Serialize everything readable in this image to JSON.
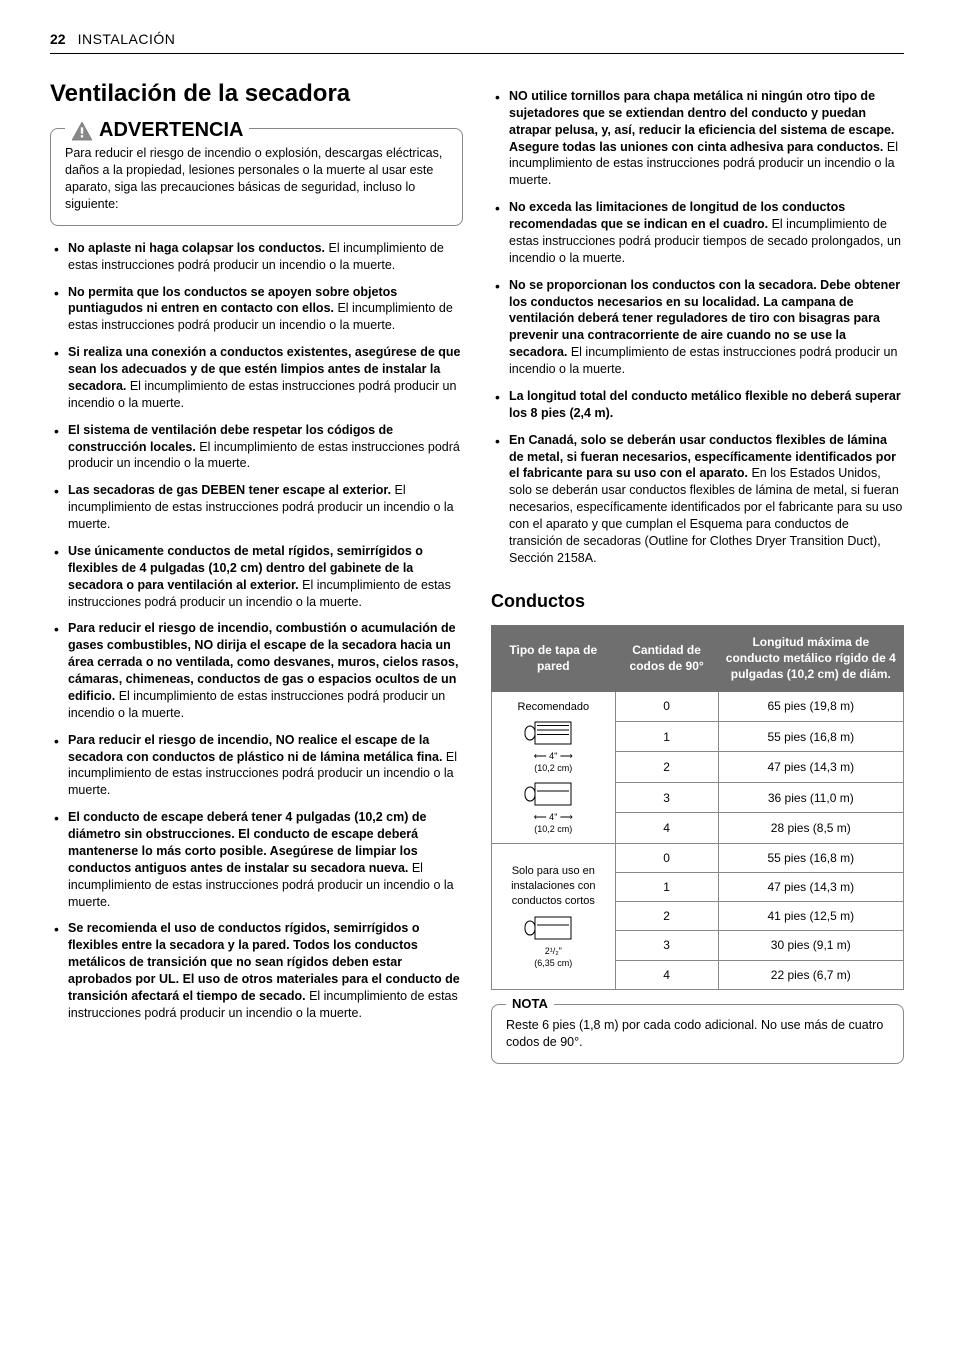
{
  "header": {
    "page_number": "22",
    "section": "INSTALACIÓN"
  },
  "title": "Ventilación de la secadora",
  "warning": {
    "label": "ADVERTENCIA",
    "text": "Para reducir el riesgo de incendio o explosión, descargas eléctricas, daños a la propiedad, lesiones personales o la muerte al usar este aparato, siga las precauciones básicas de seguridad, incluso lo siguiente:"
  },
  "left_bullets": [
    {
      "bold": "No aplaste ni haga colapsar los conductos.",
      "rest": " El incumplimiento de estas instrucciones podrá producir un incendio o la muerte."
    },
    {
      "bold": "No permita que los conductos se apoyen sobre objetos puntiagudos ni entren en contacto con ellos.",
      "rest": " El incumplimiento de estas instrucciones podrá producir un incendio o la muerte."
    },
    {
      "bold": "Si realiza una conexión a conductos existentes, asegúrese de que sean los adecuados y de que estén limpios antes de instalar la secadora.",
      "rest": " El incumplimiento de estas instrucciones podrá producir un incendio o la muerte."
    },
    {
      "bold": "El sistema de ventilación debe respetar los códigos de construcción locales.",
      "rest": " El incumplimiento de estas instrucciones podrá producir un incendio o la muerte."
    },
    {
      "bold": "Las secadoras de gas DEBEN tener escape al exterior.",
      "rest": " El incumplimiento de estas instrucciones podrá producir un incendio o la muerte."
    },
    {
      "bold": "Use únicamente conductos de metal rígidos, semirrígidos o flexibles de 4 pulgadas (10,2 cm) dentro del gabinete de la secadora o para ventilación al exterior.",
      "rest": " El incumplimiento de estas instrucciones podrá producir un incendio o la muerte."
    },
    {
      "bold": "Para reducir el riesgo de incendio, combustión o acumulación de gases combustibles, NO dirija el escape de la secadora hacia un área cerrada o no ventilada, como desvanes, muros, cielos rasos, cámaras, chimeneas, conductos de gas o espacios ocultos de un edificio.",
      "rest": " El incumplimiento de estas instrucciones podrá producir un incendio o la muerte."
    },
    {
      "bold": "Para reducir el riesgo de incendio, NO realice el escape de la secadora con conductos de plástico ni de lámina metálica fina.",
      "rest": " El incumplimiento de estas instrucciones podrá producir un incendio o la muerte."
    },
    {
      "bold": "El conducto de escape deberá tener 4 pulgadas (10,2 cm) de diámetro sin obstrucciones. El conducto de escape deberá mantenerse lo más corto posible. Asegúrese de limpiar los conductos antiguos antes de instalar su secadora nueva.",
      "rest": " El incumplimiento de estas instrucciones podrá producir un incendio o la muerte."
    },
    {
      "bold": "Se recomienda el uso de conductos rígidos, semirrígidos o flexibles entre la secadora y la pared. Todos los conductos metálicos de transición que no sean rígidos deben estar aprobados por UL. El uso de otros materiales para el conducto de transición afectará el tiempo de secado.",
      "rest": " El incumplimiento de estas instrucciones podrá producir un incendio o la muerte."
    }
  ],
  "right_bullets": [
    {
      "bold": "NO utilice tornillos para chapa metálica ni ningún otro tipo de sujetadores que se extiendan dentro del conducto y puedan atrapar pelusa, y, así, reducir la eficiencia del sistema de escape. Asegure todas las uniones con cinta adhesiva para conductos.",
      "rest": " El incumplimiento de estas instrucciones podrá producir un incendio o la muerte."
    },
    {
      "bold": "No exceda las limitaciones de longitud de los conductos recomendadas que se indican en el cuadro.",
      "rest": " El incumplimiento de estas instrucciones podrá producir tiempos de secado prolongados, un incendio o la muerte."
    },
    {
      "bold": "No se proporcionan los conductos con la secadora. Debe obtener los conductos necesarios en su localidad. La campana de ventilación deberá tener reguladores de tiro con bisagras para prevenir una contracorriente de aire cuando no se use la secadora.",
      "rest": " El incumplimiento de estas instrucciones podrá producir un incendio o la muerte."
    },
    {
      "bold": "La longitud total del conducto metálico flexible no deberá superar los 8 pies (2,4 m).",
      "rest": ""
    },
    {
      "bold": "En Canadá, solo se deberán usar conductos flexibles de lámina de metal, si fueran necesarios, específicamente identificados por el fabricante para su uso con el aparato.",
      "rest": " En los Estados Unidos, solo se deberán usar conductos flexibles de lámina de metal, si fueran necesarios, específicamente identificados por el fabricante para su uso con el aparato y que cumplan el Esquema para conductos de transición de secadoras (Outline for Clothes Dryer Transition Duct), Sección 2158A."
    }
  ],
  "ductwork": {
    "title": "Conductos",
    "headers": {
      "type": "Tipo de tapa de pared",
      "elbows": "Cantidad de codos de 90°",
      "length": "Longitud máxima de conducto metálico rígido de 4 pulgadas (10,2 cm) de diám."
    },
    "group1": {
      "label": "Recomendado",
      "dim1": "4\"",
      "dim1_cm": "(10,2 cm)",
      "dim2": "4\"",
      "dim2_cm": "(10,2 cm)",
      "rows": [
        {
          "elbows": "0",
          "length": "65 pies (19,8 m)"
        },
        {
          "elbows": "1",
          "length": "55 pies (16,8 m)"
        },
        {
          "elbows": "2",
          "length": "47 pies (14,3 m)"
        },
        {
          "elbows": "3",
          "length": "36 pies (11,0 m)"
        },
        {
          "elbows": "4",
          "length": "28 pies (8,5 m)"
        }
      ]
    },
    "group2": {
      "label": "Solo para uso en instalaciones con conductos cortos",
      "dim1": "2¹/₂\"",
      "dim1_cm": "(6,35 cm)",
      "rows": [
        {
          "elbows": "0",
          "length": "55 pies (16,8 m)"
        },
        {
          "elbows": "1",
          "length": "47 pies (14,3 m)"
        },
        {
          "elbows": "2",
          "length": "41 pies (12,5 m)"
        },
        {
          "elbows": "3",
          "length": "30 pies (9,1 m)"
        },
        {
          "elbows": "4",
          "length": "22 pies (6,7 m)"
        }
      ]
    }
  },
  "note": {
    "label": "NOTA",
    "text": "Reste 6 pies (1,8 m) por cada codo adicional. No use más de cuatro codos de 90°."
  }
}
